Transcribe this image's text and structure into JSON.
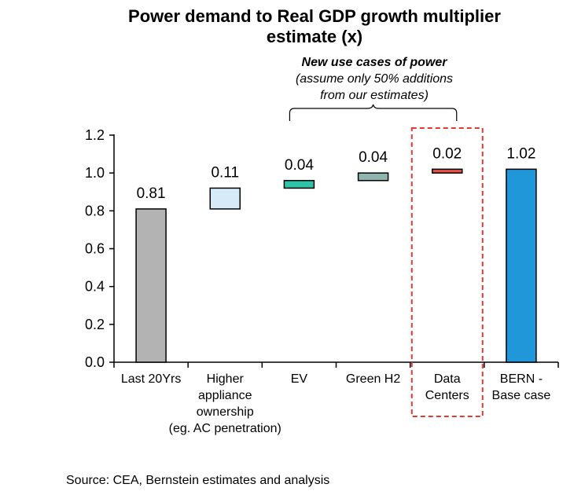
{
  "chart_data": {
    "type": "bar",
    "title_lines": [
      "Power demand to Real GDP growth multiplier",
      "estimate (x)"
    ],
    "categories": [
      [
        "Last 20Yrs"
      ],
      [
        "Higher",
        "appliance",
        "ownership",
        "(eg. AC penetration)"
      ],
      [
        "EV"
      ],
      [
        "Green H2"
      ],
      [
        "Data",
        "Centers"
      ],
      [
        "BERN -",
        "Base case"
      ]
    ],
    "values": [
      0.81,
      0.11,
      0.04,
      0.04,
      0.02,
      1.02
    ],
    "bases": [
      0,
      0.81,
      0.92,
      0.96,
      1.0,
      0
    ],
    "data_labels": [
      "0.81",
      "0.11",
      "0.04",
      "0.04",
      "0.02",
      "1.02"
    ],
    "bar_colors": [
      "#b3b3b3",
      "#d6eaf8",
      "#2ec4a8",
      "#8fb5b0",
      "#e8524a",
      "#1f97d8"
    ],
    "ylim": [
      0,
      1.2
    ],
    "yticks": [
      "0.0",
      "0.2",
      "0.4",
      "0.6",
      "0.8",
      "1.0",
      "1.2"
    ],
    "grid": false,
    "annotation": {
      "title": "New use cases of power",
      "lines": [
        "(assume only 50% additions",
        "from our estimates)"
      ]
    },
    "highlight_category": "Data Centers",
    "highlight_color": "#e03a33"
  },
  "source_text": "Source: CEA, Bernstein estimates and analysis"
}
